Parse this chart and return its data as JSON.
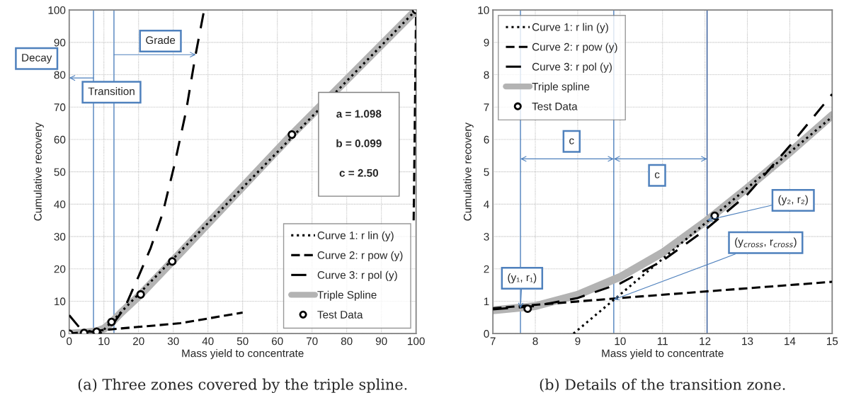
{
  "chart_data": [
    {
      "type": "line",
      "xlabel": "Mass yield to concentrate",
      "ylabel": "Cumulative recovery",
      "xlim": [
        0,
        100
      ],
      "xticks": [
        0,
        10,
        20,
        30,
        40,
        50,
        60,
        70,
        80,
        90,
        100
      ],
      "ylim": [
        0,
        100
      ],
      "yticks": [
        0,
        10,
        20,
        30,
        40,
        50,
        60,
        70,
        80,
        90,
        100
      ],
      "grid": true,
      "legend": "bottom right",
      "series": [
        {
          "name": "Curve 1: r lin (y)",
          "type": "line",
          "color": "#000000",
          "line_style": "dotted",
          "x": [
            8.9,
            100
          ],
          "values": [
            0,
            100
          ]
        },
        {
          "name": "Curve 2: r pow (y)",
          "type": "line",
          "color": "#000000",
          "line_style": "dashed",
          "x": [
            0,
            7,
            15,
            32,
            50,
            53,
            99.3,
            100
          ],
          "values": [
            0,
            0.8,
            1.6,
            3.2,
            6.5,
            null,
            35,
            100
          ]
        },
        {
          "name": "Curve 3: r pol (y)",
          "type": "line",
          "color": "#000000",
          "line_style": "dashed",
          "x": [
            0,
            3.4,
            7,
            10,
            13,
            16,
            20,
            23.5,
            27,
            30.3,
            33.7,
            36.4,
            38.9
          ],
          "values": [
            5.7,
            1.3,
            0.5,
            1.2,
            3.5,
            8,
            17.7,
            26.5,
            37.4,
            52,
            68.8,
            86,
            100
          ]
        },
        {
          "name": "Triple Spline",
          "type": "line",
          "color": "#b3b3b3",
          "line_style": "solid",
          "x": [
            0,
            4.3,
            7.9,
            10,
            12.2,
            15,
            20.6,
            29.7,
            64.2,
            100
          ],
          "values": [
            0,
            0.3,
            0.7,
            1.5,
            3.4,
            6.5,
            12.1,
            22.3,
            61.5,
            100
          ]
        },
        {
          "name": "Test Data",
          "type": "scatter",
          "color": "#000000",
          "marker": "circle",
          "x": [
            0,
            4.3,
            7.9,
            12.2,
            20.6,
            29.7,
            64.2,
            100
          ],
          "values": [
            0,
            0.2,
            0.6,
            3.6,
            12.1,
            22.3,
            61.5,
            100
          ]
        }
      ],
      "ref_lines": [
        {
          "axis": "x",
          "value": 7.0,
          "color": "#4f81bd"
        },
        {
          "axis": "x",
          "value": 12.9,
          "color": "#4f81bd"
        }
      ],
      "annotations": [
        "Decay",
        "Transition",
        "Grade",
        "a = 1.098\n\nb = 0.099\n\nc = 2.50",
        "(a) Three zones covered by the triple spline."
      ]
    },
    {
      "type": "line",
      "xlabel": "Mass yield to concentrate",
      "ylabel": "Cumulative recovery",
      "xlim": [
        7,
        15
      ],
      "xticks": [
        7,
        8,
        9,
        10,
        11,
        12,
        13,
        14,
        15
      ],
      "ylim": [
        0,
        10
      ],
      "yticks": [
        0,
        1,
        2,
        3,
        4,
        5,
        6,
        7,
        8,
        9,
        10
      ],
      "grid": true,
      "legend": "top left",
      "series": [
        {
          "name": "Curve 1: r lin (y)",
          "type": "line",
          "color": "#000000",
          "line_style": "dotted",
          "x": [
            8.9,
            15
          ],
          "values": [
            0,
            6.7
          ]
        },
        {
          "name": "Curve 2: r pow (y)",
          "type": "line",
          "color": "#000000",
          "line_style": "dashed",
          "x": [
            7,
            10,
            12,
            15
          ],
          "values": [
            0.78,
            1.1,
            1.3,
            1.6
          ]
        },
        {
          "name": "Curve 3: r pol (y)",
          "type": "line",
          "color": "#000000",
          "line_style": "dashed",
          "x": [
            7,
            8,
            9,
            10,
            11,
            12,
            13,
            14,
            15
          ],
          "values": [
            0.75,
            0.85,
            1.1,
            1.55,
            2.25,
            3.2,
            4.3,
            5.8,
            7.4
          ]
        },
        {
          "name": "Triple spline",
          "type": "line",
          "color": "#b3b3b3",
          "line_style": "solid",
          "x": [
            7,
            8,
            9,
            10,
            11,
            12,
            13,
            14,
            15
          ],
          "values": [
            0.72,
            0.85,
            1.2,
            1.75,
            2.5,
            3.45,
            4.5,
            5.6,
            6.75
          ]
        },
        {
          "name": "Test Data",
          "type": "scatter",
          "color": "#000000",
          "marker": "circle",
          "x": [
            7.82,
            12.23
          ],
          "values": [
            0.77,
            3.64
          ]
        }
      ],
      "ref_lines": [
        {
          "axis": "x",
          "value": 7.65,
          "color": "#4f81bd"
        },
        {
          "axis": "x",
          "value": 9.85,
          "color": "#4f81bd"
        },
        {
          "axis": "x",
          "value": 12.05,
          "color": "#2f5597"
        }
      ],
      "annotations": [
        "c",
        "c",
        {
          "text": "(y₁, r₁)",
          "x": 7.65,
          "y": 0.78
        },
        {
          "text": "(y₂, r₂)",
          "x": 12.05,
          "y": 3.5
        },
        {
          "text": "(y$_{cross}$, r$_{cross}$)",
          "x": 9.85,
          "y": 1.05
        },
        "(b) Details of the transition zone."
      ]
    }
  ]
}
